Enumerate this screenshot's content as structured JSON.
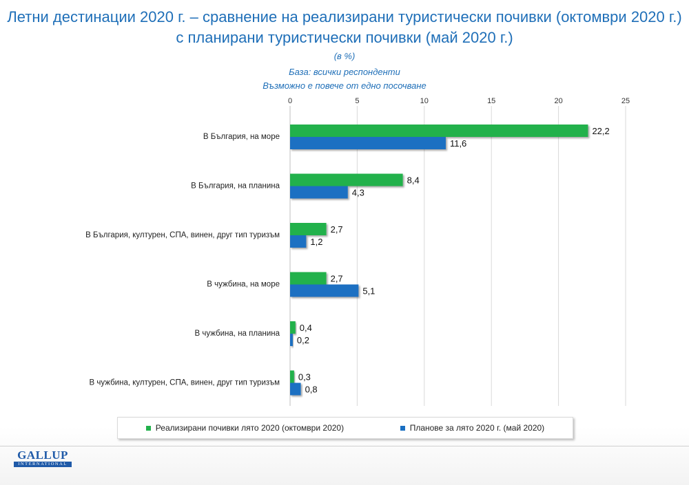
{
  "header": {
    "title_line1": "Летни дестинации 2020 г. – сравнение на реализирани туристически почивки (октомври 2020 г.)",
    "title_line2": "с планирани туристически почивки (май 2020 г.)",
    "unit": "(в %)",
    "base": "База: всички респонденти",
    "note": "Възможно е повече от едно посочване"
  },
  "chart_data": {
    "type": "bar",
    "orientation": "horizontal",
    "categories": [
      "В България, на море",
      "В България, на планина",
      "В България, културен, СПА, винен, друг тип туризъм",
      "В чужбина, на море",
      "В чужбина, на планина",
      "В чужбина, културен, СПА, винен, друг тип туризъм"
    ],
    "series": [
      {
        "name": "Реализирани почивки лято 2020 (октомври 2020)",
        "color": "#22b14c",
        "values": [
          22.2,
          8.4,
          2.7,
          2.7,
          0.4,
          0.3
        ],
        "labels": [
          "22,2",
          "8,4",
          "2,7",
          "2,7",
          "0,4",
          "0,3"
        ]
      },
      {
        "name": "Планове за лято 2020 г. (май 2020)",
        "color": "#1a6fc2",
        "values": [
          11.6,
          4.3,
          1.2,
          5.1,
          0.2,
          0.8
        ],
        "labels": [
          "11,6",
          "4,3",
          "1,2",
          "5,1",
          "0,2",
          "0,8"
        ]
      }
    ],
    "xlim": [
      0,
      25
    ],
    "xticks": [
      0,
      5,
      10,
      15,
      20,
      25
    ],
    "xtick_labels": [
      "0",
      "5",
      "10",
      "15",
      "20",
      "25"
    ],
    "axis_position": "top",
    "grid": true,
    "legend_position": "bottom"
  },
  "logo": {
    "top": "GALLUP",
    "bottom": "INTERNATIONAL"
  }
}
